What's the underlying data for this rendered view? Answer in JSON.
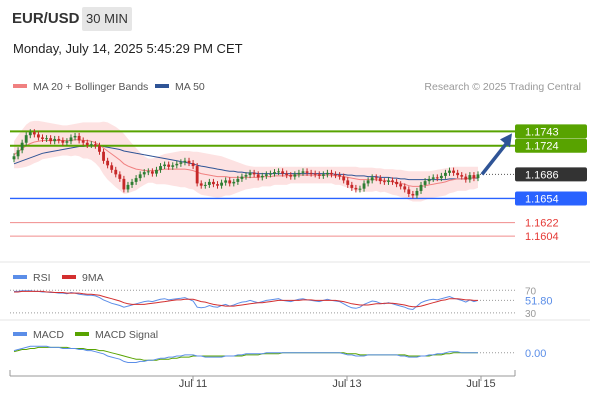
{
  "header": {
    "pair": "EUR/USD",
    "timeframe": "30 MIN",
    "timestamp": "Monday, July 14, 2025 5:45:29 PM CET"
  },
  "legend": {
    "ma20": "MA 20 + Bollinger Bands",
    "ma50": "MA 50",
    "copyright": "Research © 2025 Trading Central",
    "rsi": "RSI",
    "rsi_ma": "9MA",
    "macd": "MACD",
    "macd_signal": "MACD Signal"
  },
  "colors": {
    "up_candle": "#2e7d32",
    "down_candle": "#c62828",
    "resistance": "#58a300",
    "current": "#333333",
    "pivot": "#2962ff",
    "support": "#e53935",
    "ma20": "#f08080",
    "ma50": "#2f5496",
    "rsi": "#5b8ee8",
    "rsi_ma": "#d32f2f",
    "macd": "#5b8ee8",
    "macd_signal": "#58a300",
    "arrow": "#2f5496"
  },
  "chart_data": [
    {
      "type": "candlestick",
      "name": "price",
      "x_ticks": [
        "Jul 11",
        "Jul 13",
        "Jul 15"
      ],
      "ylim": [
        1.1575,
        1.179
      ],
      "levels": [
        {
          "value": 1.1743,
          "label": "1.1743",
          "kind": "resistance"
        },
        {
          "value": 1.1724,
          "label": "1.1724",
          "kind": "resistance"
        },
        {
          "value": 1.1686,
          "label": "1.1686",
          "kind": "current"
        },
        {
          "value": 1.1654,
          "label": "1.1654",
          "kind": "pivot"
        },
        {
          "value": 1.1622,
          "label": "1.1622",
          "kind": "support"
        },
        {
          "value": 1.1604,
          "label": "1.1604",
          "kind": "support"
        }
      ],
      "closes": [
        1.171,
        1.1718,
        1.1728,
        1.1738,
        1.1742,
        1.1739,
        1.1735,
        1.1733,
        1.1734,
        1.173,
        1.1733,
        1.1731,
        1.1728,
        1.173,
        1.1735,
        1.1737,
        1.1731,
        1.1728,
        1.1725,
        1.1726,
        1.1724,
        1.1716,
        1.1704,
        1.1698,
        1.1692,
        1.1686,
        1.168,
        1.1666,
        1.1672,
        1.1676,
        1.1681,
        1.1686,
        1.1689,
        1.169,
        1.1687,
        1.1692,
        1.1697,
        1.1699,
        1.1696,
        1.1698,
        1.17,
        1.1702,
        1.1704,
        1.1701,
        1.1697,
        1.1674,
        1.1671,
        1.1672,
        1.1676,
        1.1673,
        1.1671,
        1.1675,
        1.1678,
        1.1674,
        1.1676,
        1.168,
        1.1683,
        1.1685,
        1.1688,
        1.1686,
        1.1682,
        1.1684,
        1.1686,
        1.1687,
        1.1689,
        1.169,
        1.1687,
        1.1685,
        1.1683,
        1.1686,
        1.1688,
        1.169,
        1.1688,
        1.1687,
        1.1686,
        1.1684,
        1.1686,
        1.1688,
        1.1686,
        1.1685,
        1.1683,
        1.1678,
        1.1672,
        1.1668,
        1.1666,
        1.1667,
        1.1674,
        1.1678,
        1.1682,
        1.1681,
        1.1677,
        1.1676,
        1.1678,
        1.1676,
        1.1673,
        1.167,
        1.1666,
        1.166,
        1.1658,
        1.1664,
        1.1672,
        1.1677,
        1.168,
        1.1682,
        1.1681,
        1.1684,
        1.1688,
        1.1691,
        1.1688,
        1.1685,
        1.1683,
        1.1679,
        1.1685,
        1.1681,
        1.1686
      ],
      "ma20": [
        1.1712,
        1.1716,
        1.172,
        1.1724,
        1.1727,
        1.1729,
        1.173,
        1.1731,
        1.1731,
        1.1731,
        1.1731,
        1.1731,
        1.1731,
        1.1731,
        1.1731,
        1.1732,
        1.1732,
        1.1731,
        1.1731,
        1.173,
        1.1728,
        1.1725,
        1.1721,
        1.1717,
        1.1713,
        1.1709,
        1.1705,
        1.17,
        1.1697,
        1.1695,
        1.1693,
        1.1692,
        1.1691,
        1.1691,
        1.1691,
        1.1691,
        1.1692,
        1.1693,
        1.1693,
        1.1693,
        1.1693,
        1.1693,
        1.1693,
        1.1692,
        1.1691,
        1.1689,
        1.1687,
        1.1686,
        1.1685,
        1.1684,
        1.1683,
        1.1683,
        1.1683,
        1.1682,
        1.1682,
        1.1682,
        1.1682,
        1.1682,
        1.1682,
        1.1682,
        1.1682,
        1.1683,
        1.1683,
        1.1683,
        1.1684,
        1.1684,
        1.1684,
        1.1684,
        1.1685,
        1.1685,
        1.1685,
        1.1685,
        1.1685,
        1.1685,
        1.1685,
        1.1685,
        1.1685,
        1.1685,
        1.1685,
        1.1684,
        1.1684,
        1.1683,
        1.1682,
        1.1681,
        1.168,
        1.1679,
        1.1679,
        1.1679,
        1.1679,
        1.1679,
        1.1678,
        1.1678,
        1.1677,
        1.1676,
        1.1675,
        1.1674,
        1.1673,
        1.1671,
        1.167,
        1.167,
        1.167,
        1.1671,
        1.1672,
        1.1673,
        1.1674,
        1.1675,
        1.1676,
        1.1678,
        1.1679,
        1.168,
        1.168,
        1.168,
        1.1681,
        1.1681,
        1.1682
      ],
      "bb_upper": [
        1.173,
        1.1738,
        1.1745,
        1.1752,
        1.1756,
        1.1757,
        1.1757,
        1.1756,
        1.1755,
        1.1754,
        1.1753,
        1.1752,
        1.1751,
        1.1751,
        1.1752,
        1.1753,
        1.1754,
        1.1755,
        1.1755,
        1.1755,
        1.1755,
        1.1755,
        1.1756,
        1.1755,
        1.1752,
        1.1749,
        1.1745,
        1.174,
        1.1733,
        1.1727,
        1.1721,
        1.1715,
        1.171,
        1.1707,
        1.1707,
        1.1709,
        1.1711,
        1.1713,
        1.1714,
        1.1715,
        1.1716,
        1.1717,
        1.1717,
        1.1717,
        1.1716,
        1.1716,
        1.1715,
        1.1714,
        1.1713,
        1.1712,
        1.1711,
        1.171,
        1.1708,
        1.1706,
        1.1704,
        1.1702,
        1.17,
        1.1698,
        1.1697,
        1.1696,
        1.1696,
        1.1696,
        1.1696,
        1.1696,
        1.1696,
        1.1696,
        1.1696,
        1.1696,
        1.1696,
        1.1696,
        1.1696,
        1.1696,
        1.1696,
        1.1696,
        1.1696,
        1.1696,
        1.1696,
        1.1696,
        1.1696,
        1.1696,
        1.1696,
        1.1696,
        1.1696,
        1.1696,
        1.1696,
        1.1695,
        1.1695,
        1.1695,
        1.1695,
        1.1694,
        1.1694,
        1.1693,
        1.1693,
        1.1693,
        1.1692,
        1.1692,
        1.1691,
        1.169,
        1.169,
        1.169,
        1.169,
        1.169,
        1.169,
        1.1691,
        1.1692,
        1.1693,
        1.1694,
        1.1695,
        1.1696,
        1.1696,
        1.1696,
        1.1696,
        1.1696,
        1.1696,
        1.1696
      ],
      "bb_lower": [
        1.1694,
        1.1694,
        1.1695,
        1.1696,
        1.1698,
        1.1701,
        1.1703,
        1.1706,
        1.1707,
        1.1708,
        1.1709,
        1.171,
        1.1711,
        1.1711,
        1.171,
        1.1711,
        1.171,
        1.1707,
        1.1707,
        1.1705,
        1.1701,
        1.1695,
        1.1686,
        1.1679,
        1.1674,
        1.1669,
        1.1665,
        1.166,
        1.1661,
        1.1663,
        1.1665,
        1.1669,
        1.1672,
        1.1675,
        1.1675,
        1.1673,
        1.1673,
        1.1673,
        1.1672,
        1.1671,
        1.167,
        1.1669,
        1.1669,
        1.1667,
        1.1666,
        1.1662,
        1.1659,
        1.1658,
        1.1657,
        1.1656,
        1.1655,
        1.1656,
        1.1658,
        1.1658,
        1.166,
        1.1662,
        1.1664,
        1.1666,
        1.1667,
        1.1668,
        1.1668,
        1.167,
        1.167,
        1.167,
        1.1672,
        1.1672,
        1.1672,
        1.1672,
        1.1674,
        1.1674,
        1.1674,
        1.1674,
        1.1674,
        1.1674,
        1.1674,
        1.1674,
        1.1674,
        1.1674,
        1.1674,
        1.1672,
        1.1672,
        1.167,
        1.1668,
        1.1666,
        1.1664,
        1.1663,
        1.1663,
        1.1663,
        1.1663,
        1.1664,
        1.1662,
        1.1663,
        1.1661,
        1.1659,
        1.1658,
        1.1656,
        1.1655,
        1.1652,
        1.165,
        1.165,
        1.165,
        1.1652,
        1.1654,
        1.1655,
        1.1656,
        1.1657,
        1.1658,
        1.1661,
        1.1662,
        1.1664,
        1.1664,
        1.1664,
        1.1666,
        1.1666,
        1.1668
      ],
      "ma50": [
        1.17,
        1.1702,
        1.1704,
        1.1706,
        1.1708,
        1.171,
        1.1712,
        1.1714,
        1.1715,
        1.1716,
        1.1717,
        1.1718,
        1.1719,
        1.172,
        1.1721,
        1.1722,
        1.1723,
        1.1723,
        1.1724,
        1.1724,
        1.1724,
        1.1724,
        1.1723,
        1.1722,
        1.1721,
        1.172,
        1.1719,
        1.1717,
        1.1716,
        1.1715,
        1.1714,
        1.1713,
        1.1712,
        1.1711,
        1.171,
        1.1709,
        1.1708,
        1.1707,
        1.1706,
        1.1705,
        1.1704,
        1.1703,
        1.1702,
        1.1701,
        1.17,
        1.1698,
        1.1697,
        1.1696,
        1.1695,
        1.1694,
        1.1693,
        1.1692,
        1.1691,
        1.169,
        1.169,
        1.1689,
        1.1689,
        1.1688,
        1.1688,
        1.1688,
        1.1687,
        1.1687,
        1.1687,
        1.1687,
        1.1687,
        1.1687,
        1.1687,
        1.1687,
        1.1687,
        1.1687,
        1.1687,
        1.1687,
        1.1687,
        1.1687,
        1.1687,
        1.1687,
        1.1687,
        1.1687,
        1.1687,
        1.1686,
        1.1686,
        1.1686,
        1.1685,
        1.1685,
        1.1684,
        1.1684,
        1.1684,
        1.1683,
        1.1683,
        1.1683,
        1.1682,
        1.1682,
        1.1682,
        1.1681,
        1.1681,
        1.168,
        1.168,
        1.1679,
        1.1679,
        1.1679,
        1.1679,
        1.1679,
        1.1679,
        1.1679,
        1.1679,
        1.1679,
        1.1679,
        1.168,
        1.168,
        1.168,
        1.168,
        1.168,
        1.1681,
        1.1681,
        1.1681
      ]
    },
    {
      "type": "line",
      "name": "rsi",
      "ylim": [
        28,
        74
      ],
      "levels": [
        70,
        30
      ],
      "current_label": "51.80",
      "rsi": [
        68,
        68,
        69,
        69,
        69,
        68,
        68,
        67,
        67,
        66,
        66,
        65,
        65,
        64,
        66,
        65,
        63,
        62,
        61,
        61,
        60,
        57,
        53,
        50,
        47,
        45,
        43,
        40,
        42,
        44,
        46,
        48,
        50,
        51,
        50,
        52,
        54,
        55,
        53,
        54,
        55,
        56,
        57,
        54,
        51,
        40,
        39,
        40,
        43,
        41,
        40,
        43,
        45,
        42,
        44,
        47,
        49,
        50,
        52,
        50,
        48,
        50,
        52,
        53,
        54,
        55,
        52,
        51,
        50,
        52,
        54,
        55,
        53,
        52,
        51,
        50,
        52,
        54,
        52,
        51,
        50,
        46,
        42,
        39,
        38,
        40,
        45,
        48,
        51,
        50,
        47,
        46,
        48,
        46,
        44,
        42,
        40,
        37,
        36,
        42,
        48,
        51,
        53,
        54,
        53,
        55,
        57,
        59,
        56,
        54,
        52,
        49,
        53,
        50,
        52
      ],
      "rsi_ma": [
        67,
        67,
        68,
        68,
        68,
        68,
        68,
        68,
        67,
        67,
        66,
        66,
        66,
        65,
        65,
        65,
        65,
        64,
        63,
        63,
        62,
        61,
        59,
        57,
        55,
        53,
        51,
        48,
        46,
        45,
        45,
        45,
        45,
        46,
        47,
        48,
        49,
        50,
        51,
        52,
        53,
        53,
        54,
        54,
        54,
        52,
        50,
        49,
        47,
        45,
        44,
        43,
        42,
        42,
        42,
        43,
        44,
        45,
        46,
        47,
        48,
        48,
        49,
        50,
        51,
        52,
        52,
        52,
        52,
        52,
        52,
        53,
        53,
        53,
        52,
        52,
        52,
        52,
        52,
        52,
        51,
        50,
        48,
        46,
        45,
        44,
        44,
        44,
        45,
        46,
        46,
        47,
        47,
        47,
        46,
        45,
        44,
        42,
        41,
        41,
        42,
        44,
        46,
        48,
        50,
        52,
        53,
        55,
        55,
        55,
        54,
        53,
        53,
        52,
        52
      ]
    },
    {
      "type": "line",
      "name": "macd",
      "ylim": [
        -0.0016,
        0.001
      ],
      "current_label": "0.00",
      "macd": [
        0.0002,
        0.0003,
        0.0004,
        0.0005,
        0.0006,
        0.0006,
        0.0006,
        0.0006,
        0.0006,
        0.0005,
        0.0005,
        0.0005,
        0.0004,
        0.0004,
        0.0004,
        0.0004,
        0.0003,
        0.0003,
        0.0002,
        0.0002,
        0.0001,
        0.0,
        -0.0001,
        -0.0003,
        -0.0004,
        -0.0005,
        -0.0006,
        -0.0008,
        -0.0009,
        -0.0009,
        -0.0009,
        -0.0008,
        -0.0008,
        -0.0007,
        -0.0007,
        -0.0006,
        -0.0005,
        -0.0005,
        -0.0004,
        -0.0004,
        -0.0003,
        -0.0003,
        -0.0002,
        -0.0002,
        -0.0002,
        -0.0003,
        -0.0003,
        -0.0004,
        -0.0004,
        -0.0004,
        -0.0004,
        -0.0004,
        -0.0003,
        -0.0003,
        -0.0003,
        -0.0002,
        -0.0002,
        -0.0001,
        -0.0001,
        -0.0001,
        -0.0001,
        -0.0001,
        0.0,
        0.0,
        0.0,
        0.0,
        0.0,
        0.0,
        0.0,
        0.0,
        0.0,
        0.0,
        0.0,
        0.0,
        0.0,
        0.0,
        0.0,
        0.0,
        0.0,
        0.0,
        0.0,
        -0.0001,
        -0.0002,
        -0.0002,
        -0.0003,
        -0.0003,
        -0.0003,
        -0.0002,
        -0.0002,
        -0.0002,
        -0.0002,
        -0.0002,
        -0.0002,
        -0.0002,
        -0.0002,
        -0.0003,
        -0.0003,
        -0.0004,
        -0.0004,
        -0.0004,
        -0.0003,
        -0.0003,
        -0.0002,
        -0.0002,
        -0.0001,
        -0.0001,
        0.0,
        0.0001,
        0.0001,
        0.0001,
        0.0,
        0.0,
        0.0,
        0.0,
        0.0
      ],
      "signal": [
        0.0001,
        0.0002,
        0.0003,
        0.0003,
        0.0004,
        0.0004,
        0.0005,
        0.0005,
        0.0005,
        0.0005,
        0.0005,
        0.0005,
        0.0005,
        0.0005,
        0.0004,
        0.0004,
        0.0004,
        0.0004,
        0.0003,
        0.0003,
        0.0003,
        0.0002,
        0.0002,
        0.0001,
        0.0,
        -0.0001,
        -0.0002,
        -0.0003,
        -0.0004,
        -0.0005,
        -0.0006,
        -0.0006,
        -0.0007,
        -0.0007,
        -0.0007,
        -0.0007,
        -0.0006,
        -0.0006,
        -0.0006,
        -0.0005,
        -0.0005,
        -0.0004,
        -0.0004,
        -0.0004,
        -0.0003,
        -0.0003,
        -0.0003,
        -0.0003,
        -0.0003,
        -0.0003,
        -0.0003,
        -0.0003,
        -0.0003,
        -0.0003,
        -0.0003,
        -0.0003,
        -0.0003,
        -0.0002,
        -0.0002,
        -0.0002,
        -0.0002,
        -0.0001,
        -0.0001,
        -0.0001,
        -0.0001,
        -0.0001,
        0.0,
        0.0,
        0.0,
        0.0,
        0.0,
        0.0,
        0.0,
        0.0,
        0.0,
        0.0,
        0.0,
        0.0,
        0.0,
        0.0,
        0.0,
        0.0,
        -0.0001,
        -0.0001,
        -0.0001,
        -0.0002,
        -0.0002,
        -0.0002,
        -0.0002,
        -0.0002,
        -0.0002,
        -0.0002,
        -0.0002,
        -0.0002,
        -0.0002,
        -0.0002,
        -0.0002,
        -0.0003,
        -0.0003,
        -0.0003,
        -0.0003,
        -0.0003,
        -0.0003,
        -0.0002,
        -0.0002,
        -0.0002,
        -0.0001,
        -0.0001,
        0.0,
        0.0,
        0.0,
        0.0,
        0.0,
        0.0,
        0.0
      ]
    }
  ]
}
